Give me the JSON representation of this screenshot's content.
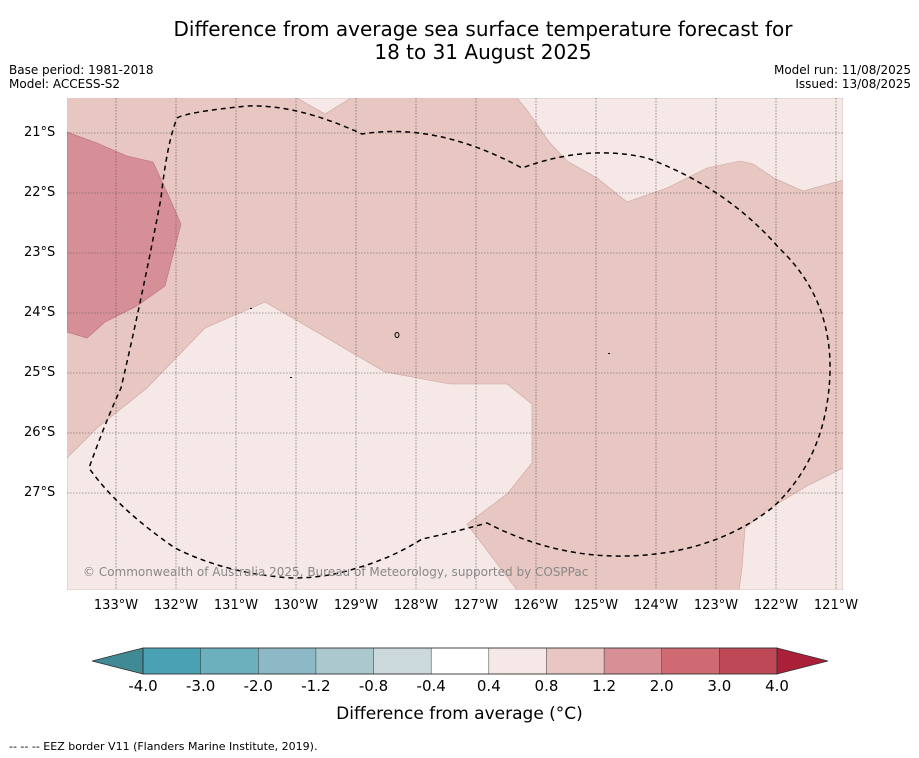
{
  "title_line1": "Difference from average sea surface temperature forecast for",
  "title_line2": "18 to 31 August 2025",
  "meta_left": {
    "base_period": "Base period: 1981-2018",
    "model": "Model: ACCESS-S2"
  },
  "meta_right": {
    "model_run": "Model run: 11/08/2025",
    "issued": "Issued: 13/08/2025"
  },
  "map": {
    "lat_labels": [
      "21°S",
      "22°S",
      "23°S",
      "24°S",
      "25°S",
      "26°S",
      "27°S"
    ],
    "lon_labels": [
      "133°W",
      "132°W",
      "131°W",
      "130°W",
      "129°W",
      "128°W",
      "127°W",
      "126°W",
      "125°W",
      "124°W",
      "123°W",
      "122°W",
      "121°W"
    ],
    "copyright": "© Commonwealth of Australia 2025, Bureau of Meteorology, supported by COSPPac",
    "region_anomaly_classes": [
      "0.4 to 0.8",
      "0.8 to 1.2",
      "1.2 to 2.0"
    ]
  },
  "colorbar": {
    "ticks": [
      "-4.0",
      "-3.0",
      "-2.0",
      "-1.2",
      "-0.8",
      "-0.4",
      "0.4",
      "0.8",
      "1.2",
      "2.0",
      "3.0",
      "4.0"
    ],
    "colors": [
      "#4aa1b3",
      "#6cafbd",
      "#8cb9c5",
      "#aac8cd",
      "#cbd9dd",
      "#ffffff",
      "#f5e8e6",
      "#e8c6c1",
      "#d88f96",
      "#cf6a73",
      "#bf4857"
    ],
    "under_color": "#3f8a95",
    "over_color": "#aa2038",
    "label": "Difference from average (°C)"
  },
  "footnote": "-- -- -- EEZ border V11 (Flanders Marine Institute, 2019)."
}
